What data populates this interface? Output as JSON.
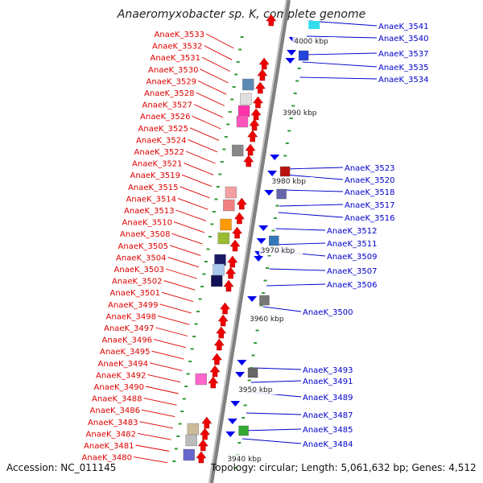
{
  "title": "Anaeromyxobacter sp. K, complete genome",
  "footer": {
    "accession": "Accession: NC_011145",
    "summary": "Topology: circular; Length: 5,061,632 bp; Genes: 4,512"
  },
  "colors": {
    "left_labels": "#dd0000",
    "right_labels": "#0000cc",
    "backbone": "#808080",
    "ticks": "#339933"
  },
  "kbp_labels": [
    "4000 kbp",
    "3990 kbp",
    "3980 kbp",
    "3970 kbp",
    "3960 kbp",
    "3950 kbp",
    "3940 kbp"
  ],
  "left_genes": [
    "AnaeK_3533",
    "AnaeK_3532",
    "AnaeK_3531",
    "AnaeK_3530",
    "AnaeK_3529",
    "AnaeK_3528",
    "AnaeK_3527",
    "AnaeK_3526",
    "AnaeK_3525",
    "AnaeK_3524",
    "AnaeK_3522",
    "AnaeK_3521",
    "AnaeK_3519",
    "AnaeK_3515",
    "AnaeK_3514",
    "AnaeK_3513",
    "AnaeK_3510",
    "AnaeK_3508",
    "AnaeK_3505",
    "AnaeK_3504",
    "AnaeK_3503",
    "AnaeK_3502",
    "AnaeK_3501",
    "AnaeK_3499",
    "AnaeK_3498",
    "AnaeK_3497",
    "AnaeK_3496",
    "AnaeK_3495",
    "AnaeK_3494",
    "AnaeK_3492",
    "AnaeK_3490",
    "AnaeK_3488",
    "AnaeK_3486",
    "AnaeK_3483",
    "AnaeK_3482",
    "AnaeK_3481",
    "AnaeK_3480"
  ],
  "right_genes": [
    "AnaeK_3541",
    "AnaeK_3540",
    "AnaeK_3537",
    "AnaeK_3535",
    "AnaeK_3534",
    "AnaeK_3523",
    "AnaeK_3520",
    "AnaeK_3518",
    "AnaeK_3517",
    "AnaeK_3516",
    "AnaeK_3512",
    "AnaeK_3511",
    "AnaeK_3509",
    "AnaeK_3507",
    "AnaeK_3506",
    "AnaeK_3500",
    "AnaeK_3493",
    "AnaeK_3491",
    "AnaeK_3489",
    "AnaeK_3487",
    "AnaeK_3485",
    "AnaeK_3484"
  ]
}
